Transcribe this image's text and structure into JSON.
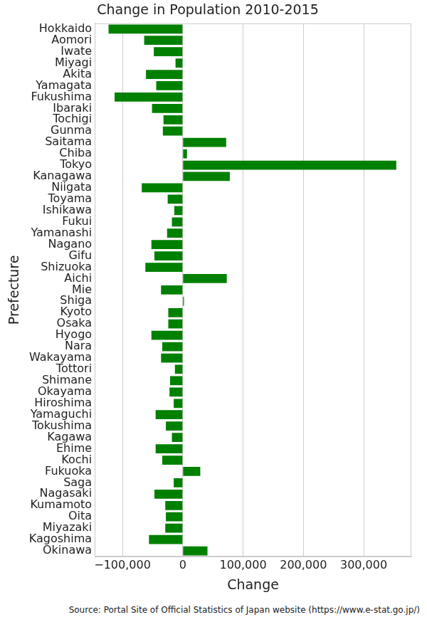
{
  "chart_data": {
    "type": "bar",
    "orientation": "horizontal",
    "title": "Change in Population 2010-2015",
    "x_label": "Change",
    "y_label": "Prefecture",
    "source": "Source: Portal Site of Official Statistics of Japan website (https://www.e-stat.go.jp/)",
    "categories": [
      "Hokkaido",
      "Aomori",
      "Iwate",
      "Miyagi",
      "Akita",
      "Yamagata",
      "Fukushima",
      "Ibaraki",
      "Tochigi",
      "Gunma",
      "Saitama",
      "Chiba",
      "Tokyo",
      "Kanagawa",
      "Niigata",
      "Toyama",
      "Ishikawa",
      "Fukui",
      "Yamanashi",
      "Nagano",
      "Gifu",
      "Shizuoka",
      "Aichi",
      "Mie",
      "Shiga",
      "Kyoto",
      "Osaka",
      "Hyogo",
      "Nara",
      "Wakayama",
      "Tottori",
      "Shimane",
      "Okayama",
      "Hiroshima",
      "Yamaguchi",
      "Tokushima",
      "Kagawa",
      "Ehime",
      "Kochi",
      "Fukuoka",
      "Saga",
      "Nagasaki",
      "Kumamoto",
      "Oita",
      "Miyazaki",
      "Kagoshima",
      "Okinawa"
    ],
    "values": [
      -123000,
      -64000,
      -48000,
      -12000,
      -61000,
      -44000,
      -113000,
      -51000,
      -32000,
      -33000,
      72000,
      7000,
      354000,
      78000,
      -68000,
      -25000,
      -14000,
      -18000,
      -26000,
      -52000,
      -47000,
      -62000,
      73000,
      -36000,
      2000,
      -24000,
      -24000,
      -52000,
      -34000,
      -36000,
      -13000,
      -21000,
      -22000,
      -15000,
      -45000,
      -28000,
      -18000,
      -45000,
      -34000,
      29000,
      -15000,
      -47000,
      -29000,
      -28000,
      -29000,
      -56000,
      41000
    ],
    "color": "#008000",
    "xlim": [
      -146000,
      379000
    ],
    "xticks": [
      {
        "value": -100000,
        "label": "−100,000"
      },
      0,
      {
        "value": 100000,
        "label": "100,000"
      },
      {
        "value": 200000,
        "label": "200,000"
      },
      {
        "value": 300000,
        "label": "300,000"
      }
    ],
    "grid": true
  }
}
